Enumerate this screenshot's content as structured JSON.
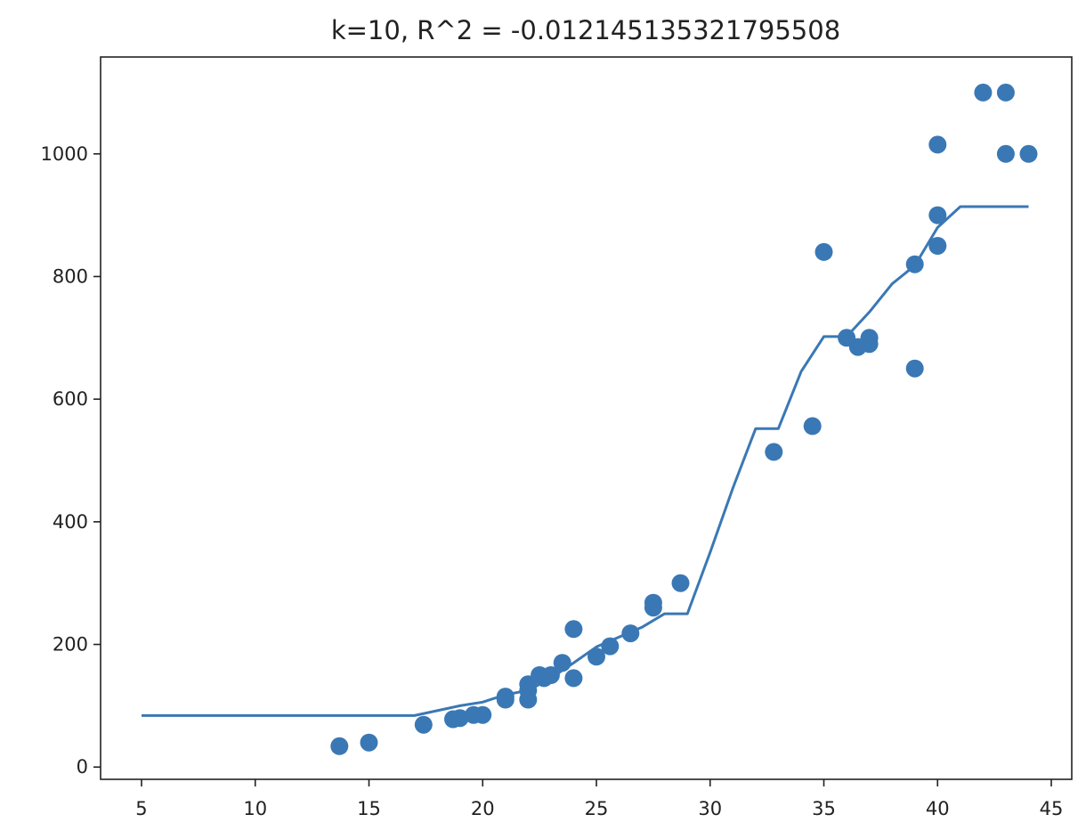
{
  "chart_data": {
    "type": "scatter",
    "title": "k=10, R^2 = -0.012145135321795508",
    "xlabel": "",
    "ylabel": "",
    "xlim": [
      3.2,
      45.9
    ],
    "ylim": [
      -20,
      1158
    ],
    "x_ticks": [
      5,
      10,
      15,
      20,
      25,
      30,
      35,
      40,
      45
    ],
    "y_ticks": [
      0,
      200,
      400,
      600,
      800,
      1000
    ],
    "grid": false,
    "legend": "none",
    "colors": {
      "points": "#3a78b5",
      "line": "#3a78b5",
      "axes": "#222222"
    },
    "series": [
      {
        "type": "scatter",
        "points": [
          [
            13.7,
            34
          ],
          [
            15.0,
            40
          ],
          [
            17.4,
            69
          ],
          [
            18.7,
            78
          ],
          [
            19.0,
            80
          ],
          [
            19.6,
            85
          ],
          [
            20.0,
            85
          ],
          [
            21.0,
            110
          ],
          [
            21.0,
            115
          ],
          [
            22.0,
            110
          ],
          [
            22.0,
            125
          ],
          [
            22.0,
            135
          ],
          [
            22.5,
            150
          ],
          [
            22.7,
            145
          ],
          [
            23.0,
            150
          ],
          [
            23.5,
            170
          ],
          [
            24.0,
            145
          ],
          [
            24.0,
            225
          ],
          [
            25.0,
            180
          ],
          [
            25.6,
            197
          ],
          [
            26.5,
            218
          ],
          [
            27.5,
            260
          ],
          [
            27.5,
            268
          ],
          [
            28.7,
            300
          ],
          [
            32.8,
            514
          ],
          [
            34.5,
            556
          ],
          [
            35.0,
            840
          ],
          [
            36.0,
            700
          ],
          [
            36.5,
            685
          ],
          [
            37.0,
            690
          ],
          [
            37.0,
            700
          ],
          [
            39.0,
            650
          ],
          [
            39.0,
            820
          ],
          [
            40.0,
            850
          ],
          [
            40.0,
            900
          ],
          [
            40.0,
            1015
          ],
          [
            42.0,
            1100
          ],
          [
            43.0,
            1100
          ],
          [
            43.0,
            1000
          ],
          [
            44.0,
            1000
          ]
        ]
      },
      {
        "type": "line",
        "points": [
          [
            5,
            84
          ],
          [
            17,
            84
          ],
          [
            19,
            100
          ],
          [
            20,
            106
          ],
          [
            21,
            118
          ],
          [
            22,
            125
          ],
          [
            23,
            145
          ],
          [
            24,
            170
          ],
          [
            25,
            196
          ],
          [
            26,
            212
          ],
          [
            27,
            228
          ],
          [
            28,
            250
          ],
          [
            29,
            250
          ],
          [
            30,
            350
          ],
          [
            31,
            455
          ],
          [
            32,
            552
          ],
          [
            33,
            552
          ],
          [
            34,
            645
          ],
          [
            35,
            702
          ],
          [
            36,
            702
          ],
          [
            37,
            742
          ],
          [
            38,
            788
          ],
          [
            39,
            818
          ],
          [
            40,
            880
          ],
          [
            41,
            914
          ],
          [
            44,
            914
          ]
        ]
      }
    ]
  }
}
